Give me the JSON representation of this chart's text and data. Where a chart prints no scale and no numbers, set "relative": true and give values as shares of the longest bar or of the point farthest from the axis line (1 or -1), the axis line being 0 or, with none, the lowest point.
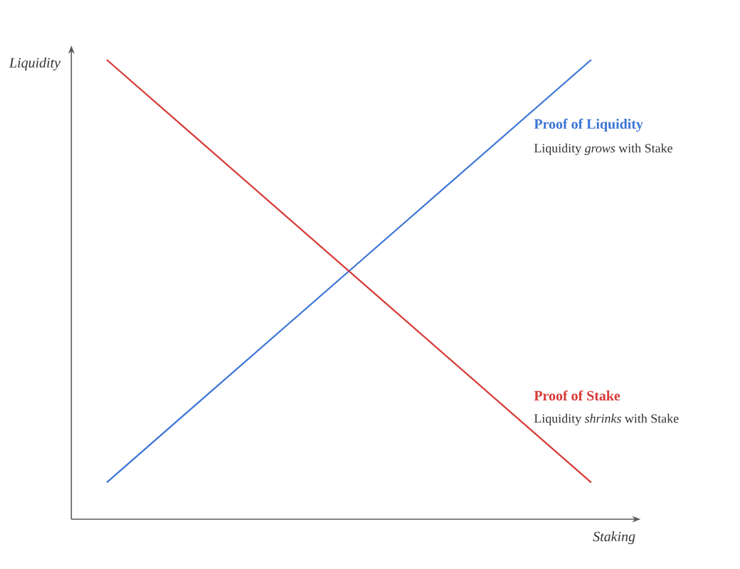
{
  "chart_data": {
    "type": "line",
    "relative": true,
    "xlabel": "Staking",
    "ylabel": "Liquidity",
    "line_style": "solid",
    "categories": [
      null,
      null
    ],
    "series": [
      {
        "name": "Proof of Liquidity",
        "color": "#3a74d6",
        "values": [
          0.08,
          1
        ]
      },
      {
        "name": "Proof of Stake",
        "color": "#d63a36",
        "values": [
          1,
          0.08
        ]
      }
    ],
    "annotations": [
      "Liquidity *grows* with Stake",
      "Liquidity *shrinks* with Stake"
    ]
  }
}
